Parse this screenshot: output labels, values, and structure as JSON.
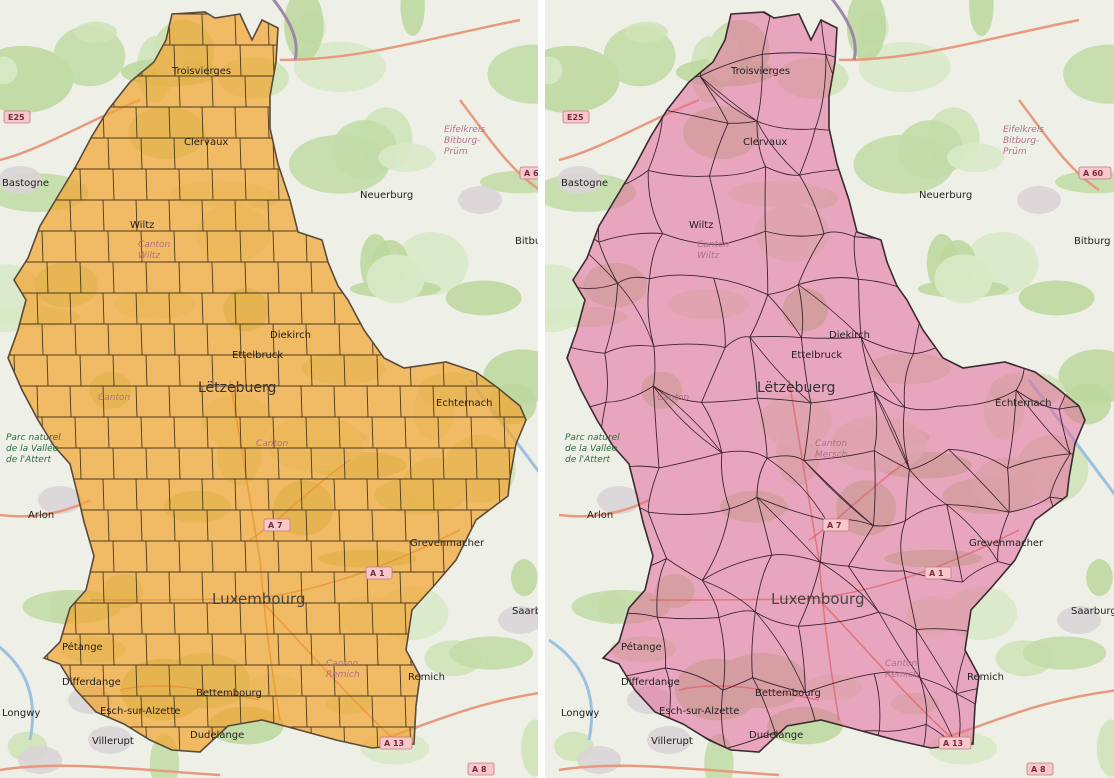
{
  "maps": [
    {
      "id": "left",
      "variant": "grid",
      "fill_color": "#f2a531",
      "line_color": "#4a3a20",
      "labels": {
        "troisvierges": "Troisvierges",
        "clervaux": "Clervaux",
        "neuerburg": "Neuerburg",
        "wiltz": "Wiltz",
        "canton_wiltz": "Canton Wiltz",
        "bitburg": "Bitburg",
        "diekirch": "Diekirch",
        "ettelbruck": "Ettelbruck",
        "letzeburg": "Lëtzebuerg",
        "canton_mid": "Canton",
        "echternach": "Echternach",
        "canton_mersch": "Canton",
        "park": "Parc naturel de la Vallée de l'Attert",
        "arlon": "Arlon",
        "grevenmacher": "Grevenmacher",
        "luxembourg": "Luxembourg",
        "petange": "Pétange",
        "differdange": "Differdange",
        "bettembourg": "Bettembourg",
        "esch": "Esch-sur-Alzette",
        "dudelange": "Dudelange",
        "remich": "Remich",
        "villerupt": "Villerupt",
        "longwy": "Longwy",
        "bastogne": "Bastogne",
        "canton_south": "Canton Remich",
        "eifel": "Eifelkreis Bitburg-Prüm",
        "saarburg": "Saarb"
      },
      "roads": {
        "e25": "E25",
        "a7": "A 7",
        "a1": "A 1",
        "a13": "A 13",
        "a8": "A 8",
        "a6": "A 6"
      }
    },
    {
      "id": "right",
      "variant": "communes",
      "fill_color": "#e46a9a",
      "line_color": "#3d2230",
      "labels": {
        "troisvierges": "Troisvierges",
        "clervaux": "Clervaux",
        "neuerburg": "Neuerburg",
        "wiltz": "Wiltz",
        "canton_wiltz": "Canton Wiltz",
        "bitburg": "Bitburg",
        "diekirch": "Diekirch",
        "ettelbruck": "Ettelbruck",
        "letzeburg": "Lëtzebuerg",
        "canton_mid": "Canton",
        "echternach": "Echternach",
        "canton_mersch": "Canton Mersch",
        "park": "Parc naturel de la Vallée de l'Attert",
        "arlon": "Arlon",
        "grevenmacher": "Grevenmacher",
        "luxembourg": "Luxembourg",
        "petange": "Pétange",
        "differdange": "Differdange",
        "bettembourg": "Bettembourg",
        "esch": "Esch-sur-Alzette",
        "dudelange": "Dudelange",
        "remich": "Remich",
        "villerupt": "Villerupt",
        "longwy": "Longwy",
        "bastogne": "Bastogne",
        "canton_south": "Canton Remich",
        "eifel": "Eifelkreis Bitburg-Prüm",
        "saarburg": "Saarburg"
      },
      "roads": {
        "e25": "E25",
        "a7": "A 7",
        "a1": "A 1",
        "a13": "A 13",
        "a8": "A 8",
        "a6": "A 60"
      }
    }
  ]
}
